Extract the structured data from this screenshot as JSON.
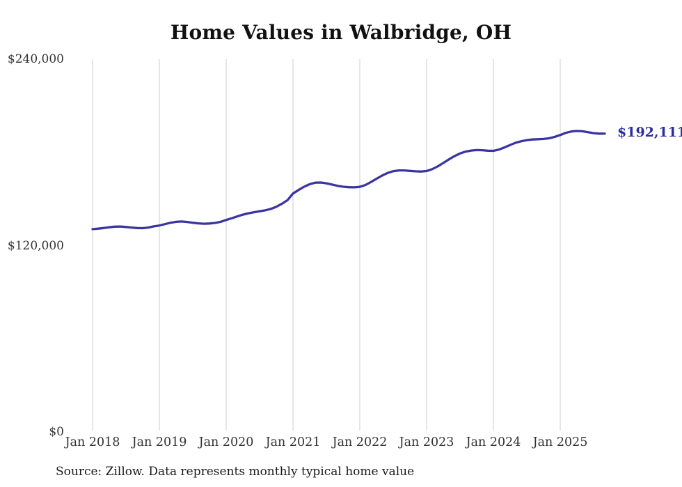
{
  "chart_data": {
    "type": "line",
    "title": "Home Values in Walbridge, OH",
    "xlabel": "",
    "ylabel": "",
    "ylim": [
      0,
      240000
    ],
    "grid": "vertical-only",
    "legend": "none",
    "end_label": "$192,111",
    "source": "Source: Zillow. Data represents monthly typical home value",
    "colors": {
      "line": "#3a35a1",
      "end_label": "#2d2da0",
      "grid": "#cccccc",
      "axis_text": "#333333",
      "title_text": "#111111"
    },
    "y_ticks": [
      {
        "label": "$0",
        "value": 0
      },
      {
        "label": "$120,000",
        "value": 120000
      },
      {
        "label": "$240,000",
        "value": 240000
      }
    ],
    "x_ticks": [
      {
        "label": "Jan 2018",
        "month_index": 0
      },
      {
        "label": "Jan 2019",
        "month_index": 12
      },
      {
        "label": "Jan 2020",
        "month_index": 24
      },
      {
        "label": "Jan 2021",
        "month_index": 36
      },
      {
        "label": "Jan 2022",
        "month_index": 48
      },
      {
        "label": "Jan 2023",
        "month_index": 60
      },
      {
        "label": "Jan 2024",
        "month_index": 72
      },
      {
        "label": "Jan 2025",
        "month_index": 84
      }
    ],
    "series": [
      {
        "name": "Monthly typical home value",
        "start_month": "2018-01",
        "frequency": "monthly",
        "values": [
          130600,
          130900,
          131300,
          131800,
          132200,
          132300,
          132000,
          131600,
          131300,
          131200,
          131600,
          132400,
          132900,
          133800,
          134700,
          135300,
          135500,
          135200,
          134700,
          134300,
          134100,
          134200,
          134600,
          135300,
          136500,
          137600,
          138800,
          139900,
          140800,
          141500,
          142100,
          142700,
          143600,
          145000,
          146900,
          149200,
          153500,
          155800,
          157900,
          159500,
          160500,
          160600,
          160100,
          159300,
          158500,
          157900,
          157600,
          157500,
          157800,
          159000,
          160900,
          163000,
          165100,
          166800,
          167900,
          168400,
          168400,
          168100,
          167800,
          167700,
          168000,
          169200,
          171000,
          173200,
          175500,
          177600,
          179300,
          180500,
          181200,
          181500,
          181400,
          181100,
          181000,
          181800,
          183200,
          184800,
          186200,
          187200,
          187900,
          188300,
          188500,
          188700,
          189100,
          190000,
          191200,
          192600,
          193500,
          193800,
          193600,
          193000,
          192400,
          192100,
          192111
        ]
      }
    ]
  }
}
